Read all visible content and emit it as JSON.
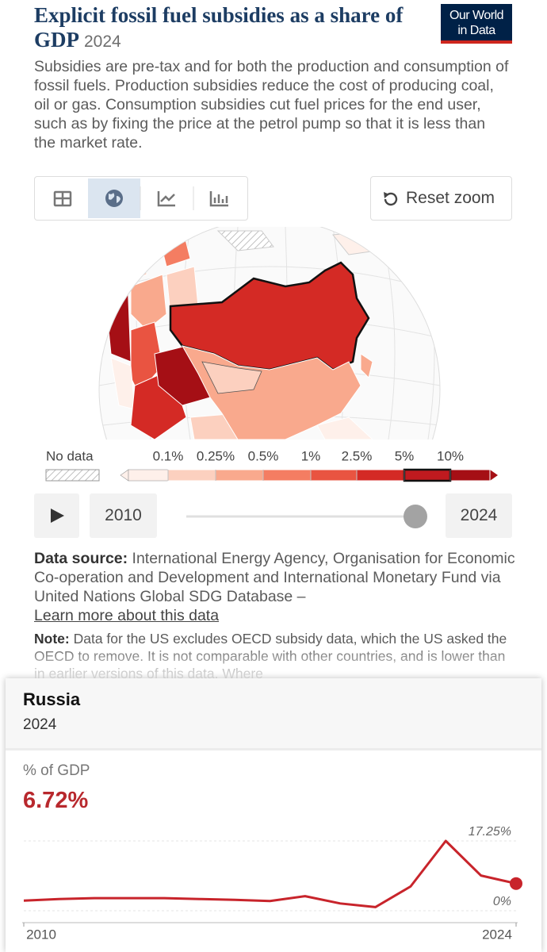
{
  "header": {
    "title": "Explicit fossil fuel subsidies as a share of GDP",
    "year": "2024",
    "logo_line1": "Our World",
    "logo_line2": "in Data",
    "subtitle": "Subsidies are pre-tax and for both the production and consumption of fossil fuels. Production subsidies reduce the cost of producing coal, oil or gas. Consumption subsidies cut fuel prices for the end user, such as by fixing the price at the petrol pump so that it is less than the market rate."
  },
  "controls": {
    "reset_zoom": "Reset zoom"
  },
  "legend": {
    "no_data": "No data",
    "labels": [
      "0.1%",
      "0.25%",
      "0.5%",
      "1%",
      "2.5%",
      "5%",
      "10%"
    ],
    "colors": [
      "#fef0ea",
      "#fcd0bf",
      "#f9a98d",
      "#f47d62",
      "#e95441",
      "#d42a25",
      "#c01a1f",
      "#a50f15"
    ]
  },
  "timeline": {
    "start": "2010",
    "end": "2024"
  },
  "sources": {
    "source_label": "Data source:",
    "source_text": "International Energy Agency, Organisation for Economic Co-operation and Development and International Monetary Fund via United Nations Global SDG Database –",
    "link": "Learn more about this data",
    "note_label": "Note:",
    "note_text": "Data for the US excludes OECD subsidy data, which the US asked the OECD to remove. It is not comparable with other countries, and is lower than in earlier versions of this data. Where"
  },
  "tooltip": {
    "country": "Russia",
    "year": "2024",
    "metric": "% of GDP",
    "chart_data": {
      "type": "line",
      "x": [
        2010,
        2011,
        2012,
        2013,
        2014,
        2015,
        2016,
        2017,
        2018,
        2019,
        2020,
        2021,
        2022,
        2023,
        2024
      ],
      "series": [
        {
          "name": "Russia",
          "color": "#c8242b",
          "values": [
            2.5,
            2.9,
            3.1,
            3.1,
            3.1,
            2.9,
            2.7,
            2.4,
            3.6,
            1.8,
            0.9,
            6.0,
            17.25,
            8.7,
            6.72
          ]
        }
      ],
      "value_labels": [
        "6.72%"
      ],
      "xlim": [
        2010,
        2024
      ],
      "xticks": [
        2010,
        2024
      ],
      "ylim": [
        0,
        17.25
      ],
      "yticks": [
        {
          "value": 0,
          "label": "0%"
        },
        {
          "value": 17.25,
          "label": "17.25%"
        }
      ]
    }
  }
}
